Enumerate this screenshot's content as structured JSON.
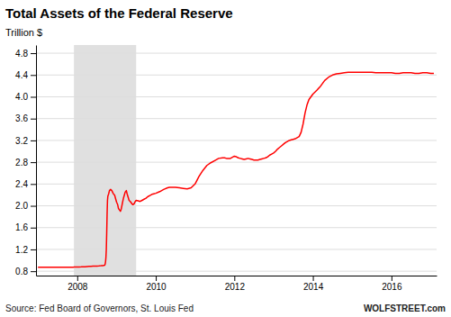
{
  "chart_data": {
    "type": "line",
    "title": "Total Assets of the Federal Reserve",
    "ylabel": "Trillion $",
    "source": "Source: Fed Board of Governors, St. Louis Fed",
    "credit": "WOLFSTREET.com",
    "color": "#ff0000",
    "grid": true,
    "recession": {
      "start": 2007.917,
      "end": 2009.5,
      "color": "#e0e0e0"
    },
    "xlim": [
      2006.95,
      2017.15
    ],
    "xticks": [
      2008,
      2010,
      2012,
      2014,
      2016
    ],
    "ylim": [
      0.72,
      4.95
    ],
    "yticks": [
      0.8,
      1.2,
      1.6,
      {
        "value": 2.0,
        "label": "2.0"
      },
      2.4,
      2.8,
      3.2,
      3.6,
      {
        "value": 4.0,
        "label": "4.0"
      },
      4.4,
      4.8
    ],
    "x": [
      2007.0,
      2007.05,
      2007.1,
      2007.15,
      2007.2,
      2007.25,
      2007.3,
      2007.35,
      2007.4,
      2007.45,
      2007.5,
      2007.55,
      2007.6,
      2007.65,
      2007.7,
      2007.75,
      2007.8,
      2007.85,
      2007.9,
      2007.917,
      2007.96,
      2008.0,
      2008.05,
      2008.1,
      2008.15,
      2008.2,
      2008.25,
      2008.3,
      2008.35,
      2008.4,
      2008.45,
      2008.5,
      2008.55,
      2008.6,
      2008.625,
      2008.65,
      2008.67,
      2008.7,
      2008.71,
      2008.72,
      2008.73,
      2008.74,
      2008.75,
      2008.76,
      2008.77,
      2008.78,
      2008.8,
      2008.82,
      2008.85,
      2008.88,
      2008.9,
      2008.92,
      2008.95,
      2009.0,
      2009.03,
      2009.05,
      2009.08,
      2009.1,
      2009.12,
      2009.15,
      2009.18,
      2009.2,
      2009.22,
      2009.25,
      2009.27,
      2009.3,
      2009.32,
      2009.35,
      2009.38,
      2009.4,
      2009.42,
      2009.45,
      2009.47,
      2009.5,
      2009.55,
      2009.6,
      2009.65,
      2009.7,
      2009.75,
      2009.8,
      2009.85,
      2009.9,
      2009.95,
      2010.0,
      2010.1,
      2010.2,
      2010.3,
      2010.35,
      2010.4,
      2010.5,
      2010.6,
      2010.7,
      2010.8,
      2010.9,
      2011.0,
      2011.1,
      2011.2,
      2011.3,
      2011.4,
      2011.5,
      2011.6,
      2011.7,
      2011.75,
      2011.8,
      2011.9,
      2012.0,
      2012.05,
      2012.1,
      2012.15,
      2012.2,
      2012.25,
      2012.3,
      2012.35,
      2012.4,
      2012.45,
      2012.5,
      2012.55,
      2012.6,
      2012.65,
      2012.7,
      2012.75,
      2012.8,
      2012.85,
      2012.9,
      2012.95,
      2013.0,
      2013.05,
      2013.1,
      2013.15,
      2013.2,
      2013.25,
      2013.3,
      2013.35,
      2013.4,
      2013.45,
      2013.5,
      2013.55,
      2013.6,
      2013.65,
      2013.7,
      2013.75,
      2013.8,
      2013.85,
      2013.9,
      2013.95,
      2014.0,
      2014.1,
      2014.2,
      2014.3,
      2014.4,
      2014.5,
      2014.6,
      2014.7,
      2014.8,
      2014.9,
      2015.0,
      2015.1,
      2015.2,
      2015.3,
      2015.4,
      2015.5,
      2015.6,
      2015.7,
      2015.8,
      2015.9,
      2016.0,
      2016.1,
      2016.2,
      2016.3,
      2016.4,
      2016.5,
      2016.6,
      2016.7,
      2016.8,
      2016.9,
      2017.0,
      2017.08
    ],
    "values": [
      0.872,
      0.872,
      0.871,
      0.872,
      0.872,
      0.871,
      0.872,
      0.872,
      0.873,
      0.872,
      0.872,
      0.871,
      0.872,
      0.872,
      0.872,
      0.872,
      0.873,
      0.873,
      0.874,
      0.875,
      0.876,
      0.878,
      0.879,
      0.88,
      0.882,
      0.883,
      0.886,
      0.888,
      0.89,
      0.892,
      0.893,
      0.895,
      0.897,
      0.9,
      0.902,
      0.903,
      0.906,
      0.91,
      0.93,
      0.97,
      1.05,
      1.2,
      1.5,
      1.85,
      2.1,
      2.18,
      2.22,
      2.28,
      2.3,
      2.28,
      2.25,
      2.22,
      2.2,
      2.07,
      2.02,
      1.95,
      1.92,
      1.9,
      1.94,
      2.05,
      2.15,
      2.2,
      2.25,
      2.28,
      2.22,
      2.15,
      2.1,
      2.08,
      2.05,
      2.03,
      2.02,
      2.04,
      2.07,
      2.1,
      2.09,
      2.08,
      2.1,
      2.12,
      2.14,
      2.17,
      2.19,
      2.21,
      2.22,
      2.23,
      2.26,
      2.3,
      2.33,
      2.34,
      2.34,
      2.34,
      2.33,
      2.32,
      2.31,
      2.33,
      2.4,
      2.54,
      2.65,
      2.74,
      2.79,
      2.83,
      2.87,
      2.88,
      2.88,
      2.87,
      2.87,
      2.91,
      2.9,
      2.88,
      2.87,
      2.86,
      2.85,
      2.86,
      2.87,
      2.86,
      2.85,
      2.84,
      2.84,
      2.84,
      2.85,
      2.86,
      2.87,
      2.88,
      2.9,
      2.93,
      2.95,
      2.97,
      3.0,
      3.04,
      3.07,
      3.1,
      3.13,
      3.16,
      3.18,
      3.2,
      3.21,
      3.22,
      3.23,
      3.25,
      3.27,
      3.35,
      3.5,
      3.7,
      3.85,
      3.95,
      4.0,
      4.05,
      4.12,
      4.2,
      4.3,
      4.36,
      4.4,
      4.42,
      4.43,
      4.44,
      4.45,
      4.45,
      4.45,
      4.45,
      4.45,
      4.45,
      4.45,
      4.44,
      4.44,
      4.44,
      4.44,
      4.44,
      4.43,
      4.43,
      4.44,
      4.44,
      4.44,
      4.43,
      4.43,
      4.44,
      4.44,
      4.43,
      4.43
    ]
  }
}
